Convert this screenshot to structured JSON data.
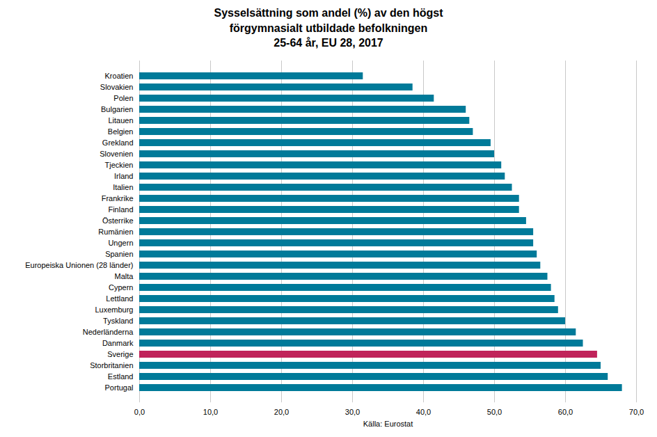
{
  "chart_data": {
    "type": "bar",
    "orientation": "horizontal",
    "title": "Sysselsättning som andel (%) av den högst\nförgymnasialt utbildade befolkningen\n25-64 år, EU 28, 2017",
    "x_label": "Källa: Eurostat",
    "categories": [
      "Kroatien",
      "Slovakien",
      "Polen",
      "Bulgarien",
      "Litauen",
      "Belgien",
      "Grekland",
      "Slovenien",
      "Tjeckien",
      "Irland",
      "Italien",
      "Frankrike",
      "Finland",
      "Österrike",
      "Rumänien",
      "Ungern",
      "Spanien",
      "Europeiska Unionen (28 länder)",
      "Malta",
      "Cypern",
      "Lettland",
      "Luxemburg",
      "Tyskland",
      "Nederländerna",
      "Danmark",
      "Sverige",
      "Storbritanien",
      "Estland",
      "Portugal"
    ],
    "values": [
      31.5,
      38.5,
      41.5,
      46.0,
      46.5,
      47.0,
      49.5,
      50.0,
      51.0,
      51.5,
      52.5,
      53.5,
      53.5,
      54.5,
      55.5,
      55.5,
      56.0,
      56.5,
      57.5,
      58.0,
      58.5,
      59.0,
      60.0,
      61.5,
      62.5,
      64.5,
      65.0,
      66.0,
      68.0
    ],
    "colors": [
      "#007a99",
      "#007a99",
      "#007a99",
      "#007a99",
      "#007a99",
      "#007a99",
      "#007a99",
      "#007a99",
      "#007a99",
      "#007a99",
      "#007a99",
      "#007a99",
      "#007a99",
      "#007a99",
      "#007a99",
      "#007a99",
      "#007a99",
      "#007a99",
      "#007a99",
      "#007a99",
      "#007a99",
      "#007a99",
      "#007a99",
      "#007a99",
      "#007a99",
      "#c0235a",
      "#007a99",
      "#007a99",
      "#007a99"
    ],
    "xlim": [
      0,
      70
    ],
    "xticks": [
      {
        "value": 0,
        "label": "0,0"
      },
      {
        "value": 10,
        "label": "10,0"
      },
      {
        "value": 20,
        "label": "20,0"
      },
      {
        "value": 30,
        "label": "30,0"
      },
      {
        "value": 40,
        "label": "40,0"
      },
      {
        "value": 50,
        "label": "50,0"
      },
      {
        "value": 60,
        "label": "60,0"
      },
      {
        "value": 70,
        "label": "70,0"
      }
    ],
    "grid": true
  }
}
